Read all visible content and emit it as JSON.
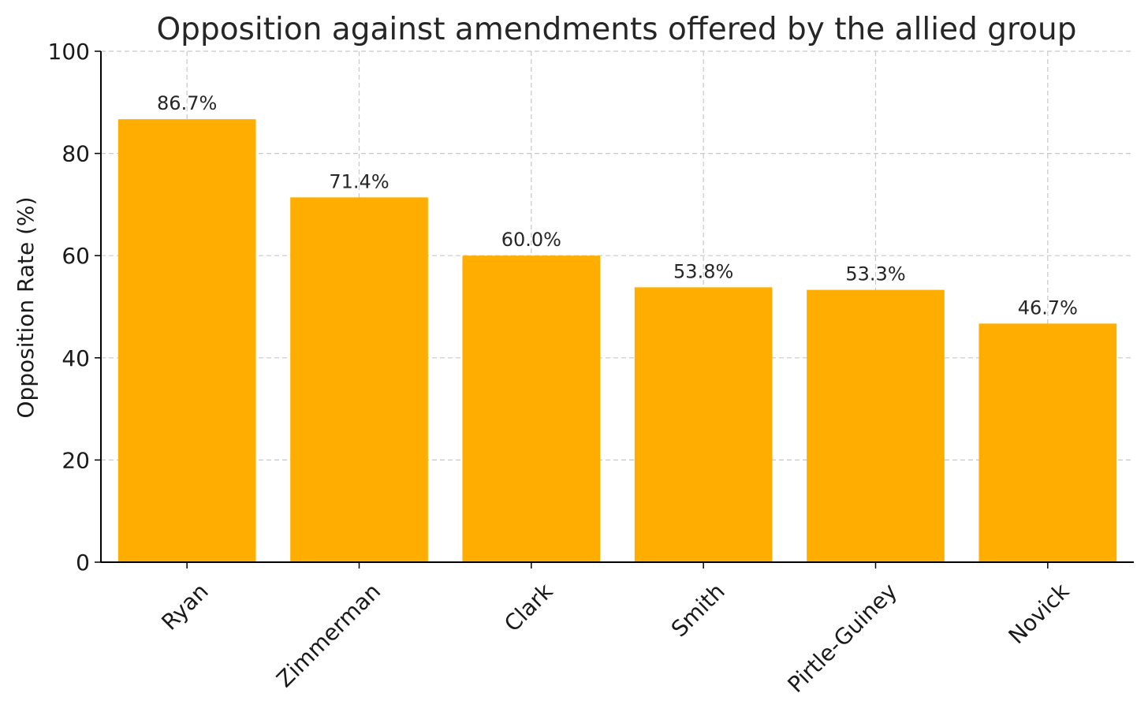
{
  "chart_data": {
    "type": "bar",
    "title": "Opposition against amendments offered by the allied group",
    "xlabel": "",
    "ylabel": "Opposition Rate (%)",
    "categories": [
      "Ryan",
      "Zimmerman",
      "Clark",
      "Smith",
      "Pirtle-Guiney",
      "Novick"
    ],
    "values": [
      86.7,
      71.4,
      60.0,
      53.8,
      53.3,
      46.7
    ],
    "data_labels": [
      "86.7%",
      "71.4%",
      "60.0%",
      "53.8%",
      "53.3%",
      "46.7%"
    ],
    "ylim": [
      0,
      100
    ],
    "yticks": [
      0,
      20,
      40,
      60,
      80,
      100
    ],
    "grid": true,
    "legend": "none",
    "bar_color": "#FFAE00"
  }
}
